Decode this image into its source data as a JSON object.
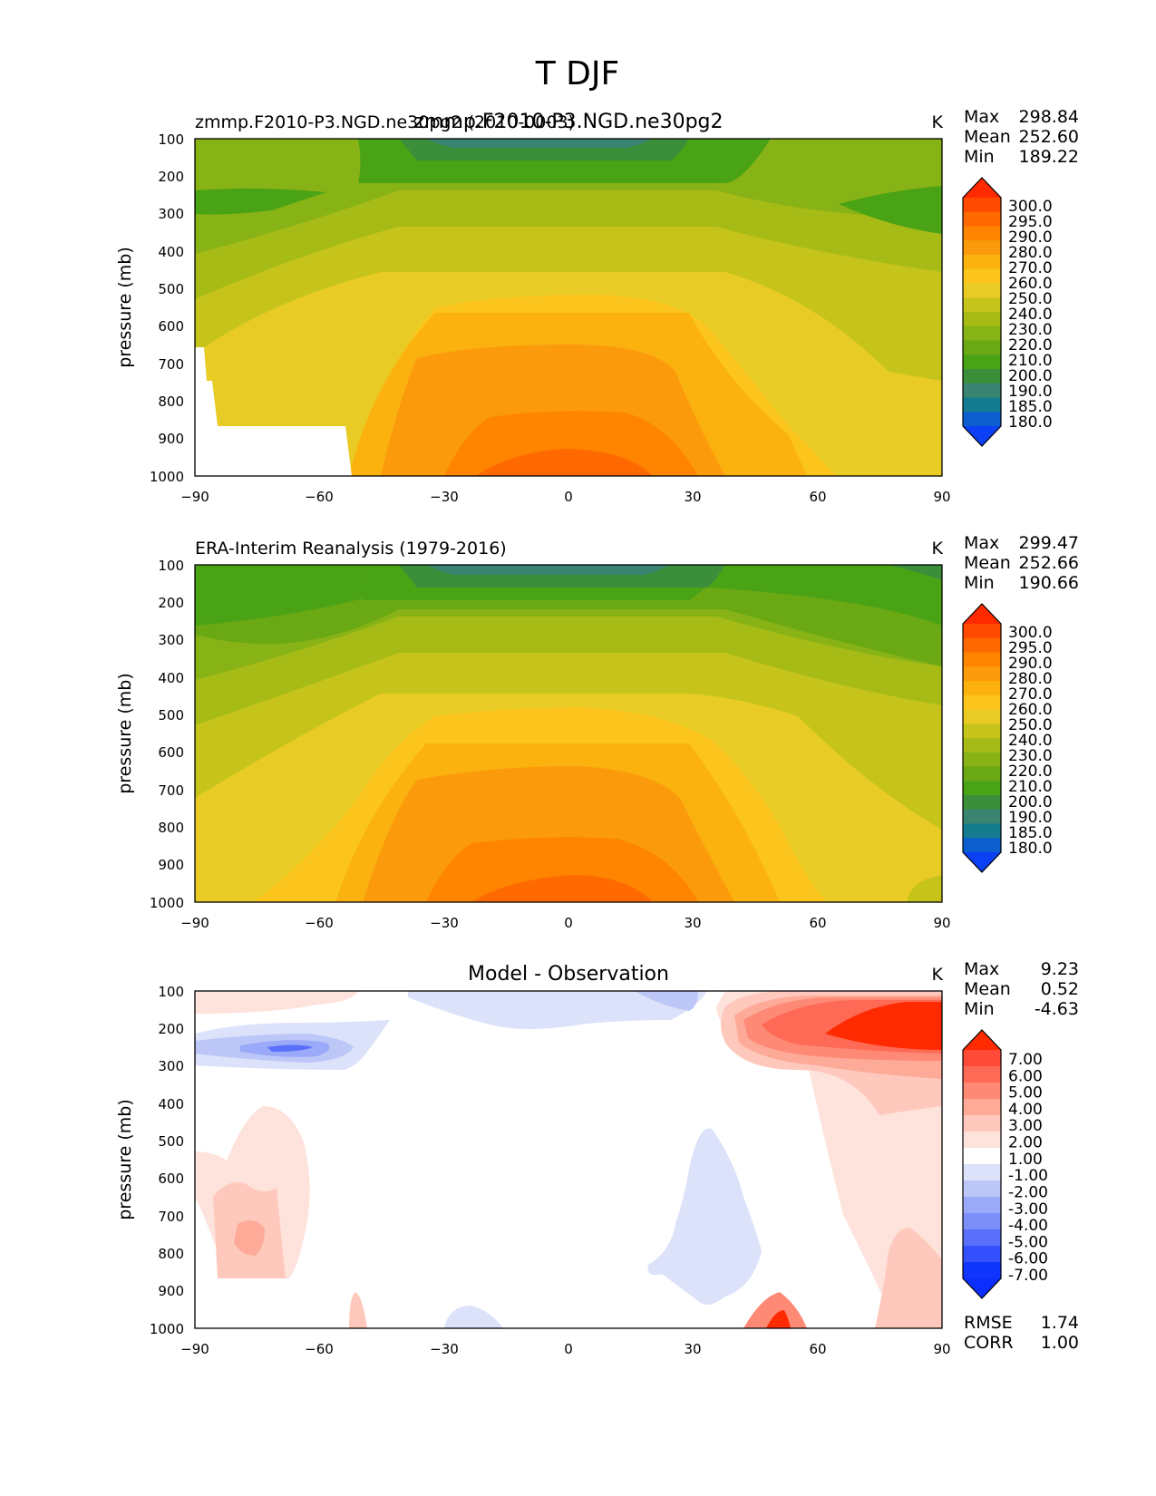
{
  "figure": {
    "title": "T DJF"
  },
  "chart_data": [
    {
      "type": "heatmap",
      "panel": "model",
      "title_center": "zmmp.F2010-P3.NGD.ne30pg2",
      "title_left": "zmmp.F2010-P3.NGD.ne30pg2 (2010-0003)",
      "units": "K",
      "ylabel": "pressure (mb)",
      "xlim": [
        -90,
        90
      ],
      "ylim": [
        1000,
        100
      ],
      "xticks": [
        "−90",
        "−60",
        "−30",
        "0",
        "30",
        "60",
        "90"
      ],
      "yticks": [
        "100",
        "200",
        "300",
        "400",
        "500",
        "600",
        "700",
        "800",
        "900",
        "1000"
      ],
      "stats": {
        "max_label": "Max",
        "max": "298.84",
        "mean_label": "Mean",
        "mean": "252.60",
        "min_label": "Min",
        "min": "189.22"
      },
      "colorbar": {
        "levels": [
          "300.0",
          "295.0",
          "290.0",
          "280.0",
          "270.0",
          "260.0",
          "250.0",
          "240.0",
          "230.0",
          "220.0",
          "210.0",
          "200.0",
          "190.0",
          "185.0",
          "180.0"
        ],
        "colors_top_to_bottom": [
          "#ff2a00",
          "#ff4a00",
          "#ff6a00",
          "#ff8400",
          "#fb9b0c",
          "#fbb20f",
          "#fbc51d",
          "#e8cc25",
          "#c6c41b",
          "#a7bb17",
          "#87b316",
          "#6aa914",
          "#4aa315",
          "#3b8f3a",
          "#3a8472",
          "#147c8e",
          "#0d5fcf",
          "#0b40f4"
        ]
      }
    },
    {
      "type": "heatmap",
      "panel": "observation",
      "title_left": "ERA-Interim Reanalysis (1979-2016)",
      "units": "K",
      "ylabel": "pressure (mb)",
      "xlim": [
        -90,
        90
      ],
      "ylim": [
        1000,
        100
      ],
      "xticks": [
        "−90",
        "−60",
        "−30",
        "0",
        "30",
        "60",
        "90"
      ],
      "yticks": [
        "100",
        "200",
        "300",
        "400",
        "500",
        "600",
        "700",
        "800",
        "900",
        "1000"
      ],
      "stats": {
        "max_label": "Max",
        "max": "299.47",
        "mean_label": "Mean",
        "mean": "252.66",
        "min_label": "Min",
        "min": "190.66"
      },
      "colorbar": {
        "levels": [
          "300.0",
          "295.0",
          "290.0",
          "280.0",
          "270.0",
          "260.0",
          "250.0",
          "240.0",
          "230.0",
          "220.0",
          "210.0",
          "200.0",
          "190.0",
          "185.0",
          "180.0"
        ],
        "colors_top_to_bottom": [
          "#ff2a00",
          "#ff4a00",
          "#ff6a00",
          "#ff8400",
          "#fb9b0c",
          "#fbb20f",
          "#fbc51d",
          "#e8cc25",
          "#c6c41b",
          "#a7bb17",
          "#87b316",
          "#6aa914",
          "#4aa315",
          "#3b8f3a",
          "#3a8472",
          "#147c8e",
          "#0d5fcf",
          "#0b40f4"
        ]
      }
    },
    {
      "type": "heatmap",
      "panel": "difference",
      "title_center": "Model - Observation",
      "units": "K",
      "ylabel": "pressure (mb)",
      "xlim": [
        -90,
        90
      ],
      "ylim": [
        1000,
        100
      ],
      "xticks": [
        "−90",
        "−60",
        "−30",
        "0",
        "30",
        "60",
        "90"
      ],
      "yticks": [
        "100",
        "200",
        "300",
        "400",
        "500",
        "600",
        "700",
        "800",
        "900",
        "1000"
      ],
      "stats": {
        "max_label": "Max",
        "max": "9.23",
        "mean_label": "Mean",
        "mean": "0.52",
        "min_label": "Min",
        "min": "-4.63",
        "rmse_label": "RMSE",
        "rmse": "1.74",
        "corr_label": "CORR",
        "corr": "1.00"
      },
      "colorbar": {
        "levels": [
          "7.00",
          "6.00",
          "5.00",
          "4.00",
          "3.00",
          "2.00",
          "1.00",
          "-1.00",
          "-2.00",
          "-3.00",
          "-4.00",
          "-5.00",
          "-6.00",
          "-7.00"
        ],
        "colors_top_to_bottom": [
          "#ff2a00",
          "#fe4a36",
          "#fe6a55",
          "#fe8a76",
          "#feaa98",
          "#fec9bc",
          "#fee3dc",
          "#ffffff",
          "#dbe2f9",
          "#bcc7f8",
          "#9aaaf8",
          "#7c8ff8",
          "#5a6ffa",
          "#3450fc",
          "#1036fe",
          "#0c2efe"
        ]
      }
    }
  ]
}
